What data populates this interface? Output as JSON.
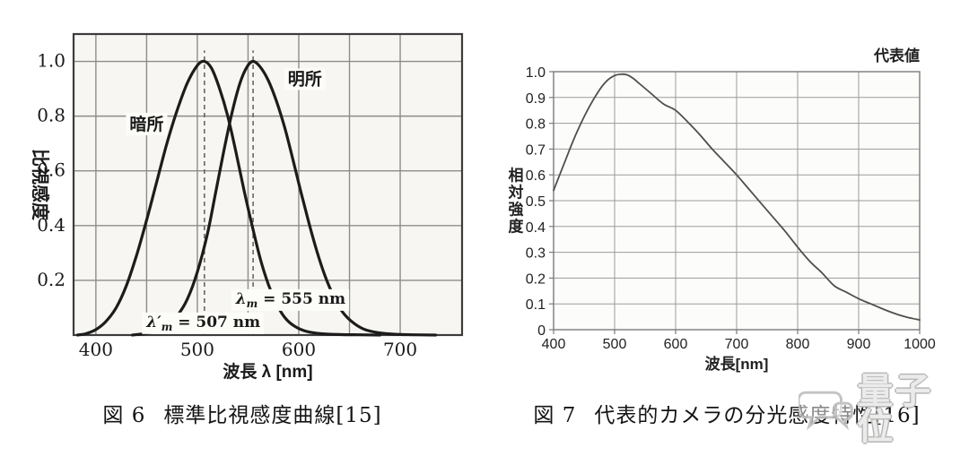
{
  "watermark": {
    "text": "量子位",
    "icon": "chat-bubble-icon",
    "color": "#bdbdbd"
  },
  "chart_data": [
    {
      "id": "fig6",
      "type": "line",
      "caption_label": "図 6",
      "caption_title": "標準比視感度曲線[15]",
      "xlabel": "波長 λ [nm]",
      "ylabel": "比視感度",
      "ylabel_mode": "rotated",
      "xlim": [
        378,
        761
      ],
      "ylim": [
        0,
        1.1
      ],
      "grid": true,
      "legend_label": "",
      "x_ticks": [
        {
          "v": 400,
          "label": "400"
        },
        {
          "v": 500,
          "label": "500"
        },
        {
          "v": 600,
          "label": "600"
        },
        {
          "v": 700,
          "label": "700"
        }
      ],
      "y_ticks": [
        {
          "v": 1.0,
          "label": "1.0"
        },
        {
          "v": 0.8,
          "label": "0.8"
        },
        {
          "v": 0.6,
          "label": "0.6"
        },
        {
          "v": 0.4,
          "label": "0.4"
        },
        {
          "v": 0.2,
          "label": "0.2"
        }
      ],
      "x_gridlines": [
        400,
        450,
        500,
        550,
        600,
        650,
        700
      ],
      "y_gridlines": [
        0.2,
        0.4,
        0.6,
        0.8,
        1.0
      ],
      "vlines": [
        {
          "x": 507,
          "from": 0,
          "to": 1.04,
          "style": "dashed"
        },
        {
          "x": 555,
          "from": 0,
          "to": 1.04,
          "style": "dashed"
        }
      ],
      "series": [
        {
          "id": "scotopic-curve",
          "name": "暗所",
          "peak_note": "λ′m = 507 nm",
          "points": [
            [
              382,
              0
            ],
            [
              390,
              0.005
            ],
            [
              400,
              0.02
            ],
            [
              410,
              0.05
            ],
            [
              420,
              0.1
            ],
            [
              430,
              0.18
            ],
            [
              440,
              0.29
            ],
            [
              450,
              0.42
            ],
            [
              460,
              0.56
            ],
            [
              470,
              0.7
            ],
            [
              480,
              0.82
            ],
            [
              490,
              0.92
            ],
            [
              500,
              0.985
            ],
            [
              507,
              1.0
            ],
            [
              514,
              0.975
            ],
            [
              522,
              0.9
            ],
            [
              530,
              0.8
            ],
            [
              538,
              0.67
            ],
            [
              546,
              0.53
            ],
            [
              554,
              0.4
            ],
            [
              562,
              0.28
            ],
            [
              570,
              0.185
            ],
            [
              578,
              0.115
            ],
            [
              586,
              0.065
            ],
            [
              596,
              0.032
            ],
            [
              608,
              0.013
            ],
            [
              622,
              0.005
            ],
            [
              640,
              0.002
            ],
            [
              660,
              0.001
            ],
            [
              680,
              0
            ]
          ]
        },
        {
          "id": "photopic-curve",
          "name": "明所",
          "peak_note": "λm = 555 nm",
          "points": [
            [
              436,
              0
            ],
            [
              448,
              0.005
            ],
            [
              460,
              0.015
            ],
            [
              470,
              0.035
            ],
            [
              480,
              0.07
            ],
            [
              490,
              0.13
            ],
            [
              500,
              0.23
            ],
            [
              510,
              0.37
            ],
            [
              518,
              0.52
            ],
            [
              526,
              0.67
            ],
            [
              534,
              0.81
            ],
            [
              542,
              0.92
            ],
            [
              549,
              0.98
            ],
            [
              555,
              1.0
            ],
            [
              562,
              0.98
            ],
            [
              570,
              0.93
            ],
            [
              578,
              0.855
            ],
            [
              586,
              0.76
            ],
            [
              594,
              0.645
            ],
            [
              602,
              0.525
            ],
            [
              610,
              0.41
            ],
            [
              618,
              0.305
            ],
            [
              626,
              0.215
            ],
            [
              634,
              0.145
            ],
            [
              642,
              0.09
            ],
            [
              652,
              0.05
            ],
            [
              664,
              0.022
            ],
            [
              678,
              0.009
            ],
            [
              695,
              0.003
            ],
            [
              715,
              0.001
            ],
            [
              735,
              0
            ]
          ]
        }
      ],
      "annotations": [
        {
          "id": "scotopic-label",
          "x": 450,
          "y": 0.75,
          "parts": [
            {
              "text": "暗所"
            }
          ],
          "bg": true,
          "bold": true,
          "size": 19,
          "font": "sans"
        },
        {
          "id": "photopic-label",
          "x": 606,
          "y": 0.915,
          "parts": [
            {
              "text": "明所"
            }
          ],
          "bg": true,
          "bold": true,
          "size": 19,
          "font": "sans"
        },
        {
          "id": "lambda-507-note",
          "x": 506,
          "y": 0.03,
          "parts": [
            {
              "text": "λ′",
              "italic": true
            },
            {
              "text": "m",
              "sub": true,
              "italic": true
            },
            {
              "text": " = 507 nm"
            }
          ],
          "bg": true,
          "bold": true,
          "size": 17,
          "font": "serif"
        },
        {
          "id": "lambda-555-note",
          "x": 592,
          "y": 0.115,
          "parts": [
            {
              "text": "λ",
              "italic": true
            },
            {
              "text": "m",
              "sub": true,
              "italic": true
            },
            {
              "text": " = 555 nm"
            }
          ],
          "bg": true,
          "bold": true,
          "size": 17,
          "font": "serif"
        }
      ],
      "style": {
        "plot_bg": "#f7f6f2",
        "grid_color": "#8c8c8c",
        "grid_width": 1.4,
        "border_color": "#3c3c3c",
        "border_width": 2.2,
        "curve_color": "#1c1c1c",
        "curve_width": 3.2,
        "dash_color": "#666666",
        "text_color": "#1a1a1a",
        "tick_size": 20,
        "tick_font": "serif",
        "label_size": 19,
        "tick_marks": false,
        "ylabel_dx": 44,
        "ylabel_size": 20
      }
    },
    {
      "id": "fig7",
      "type": "line",
      "caption_label": "図 7",
      "caption_title": "代表的カメラの分光感度特性[16]",
      "xlabel": "波長[nm]",
      "ylabel": "相対強度",
      "ylabel_mode": "stacked",
      "xlim": [
        400,
        1000
      ],
      "ylim": [
        0,
        1.0
      ],
      "grid": true,
      "legend_label": "代表値",
      "legend_position": "top-right",
      "x_ticks": [
        {
          "v": 400,
          "label": "400"
        },
        {
          "v": 500,
          "label": "500"
        },
        {
          "v": 600,
          "label": "600"
        },
        {
          "v": 700,
          "label": "700"
        },
        {
          "v": 800,
          "label": "800"
        },
        {
          "v": 900,
          "label": "900"
        },
        {
          "v": 1000,
          "label": "1000"
        }
      ],
      "y_ticks": [
        {
          "v": 1.0,
          "label": "1.0"
        },
        {
          "v": 0.9,
          "label": "0.9"
        },
        {
          "v": 0.8,
          "label": "0.8"
        },
        {
          "v": 0.7,
          "label": "0.7"
        },
        {
          "v": 0.6,
          "label": "0.6"
        },
        {
          "v": 0.5,
          "label": "0.5"
        },
        {
          "v": 0.4,
          "label": "0.4"
        },
        {
          "v": 0.3,
          "label": "0.3"
        },
        {
          "v": 0.2,
          "label": "0.2"
        },
        {
          "v": 0.1,
          "label": "0.1"
        },
        {
          "v": 0,
          "label": "0"
        }
      ],
      "x_gridlines": [
        400,
        500,
        600,
        700,
        800,
        900,
        1000
      ],
      "y_gridlines": [
        0,
        0.1,
        0.2,
        0.3,
        0.4,
        0.5,
        0.6,
        0.7,
        0.8,
        0.9,
        1.0
      ],
      "vlines": [],
      "series": [
        {
          "id": "camera-sensitivity-curve",
          "name": "代表値",
          "points": [
            [
              400,
              0.54
            ],
            [
              410,
              0.6
            ],
            [
              420,
              0.66
            ],
            [
              430,
              0.72
            ],
            [
              440,
              0.775
            ],
            [
              450,
              0.825
            ],
            [
              460,
              0.87
            ],
            [
              470,
              0.91
            ],
            [
              480,
              0.945
            ],
            [
              490,
              0.97
            ],
            [
              500,
              0.985
            ],
            [
              510,
              0.99
            ],
            [
              520,
              0.988
            ],
            [
              530,
              0.975
            ],
            [
              540,
              0.955
            ],
            [
              560,
              0.915
            ],
            [
              580,
              0.875
            ],
            [
              600,
              0.85
            ],
            [
              620,
              0.805
            ],
            [
              640,
              0.755
            ],
            [
              660,
              0.7
            ],
            [
              680,
              0.65
            ],
            [
              700,
              0.6
            ],
            [
              720,
              0.545
            ],
            [
              740,
              0.49
            ],
            [
              760,
              0.435
            ],
            [
              780,
              0.38
            ],
            [
              800,
              0.32
            ],
            [
              820,
              0.265
            ],
            [
              840,
              0.22
            ],
            [
              860,
              0.17
            ],
            [
              880,
              0.145
            ],
            [
              900,
              0.12
            ],
            [
              920,
              0.1
            ],
            [
              940,
              0.08
            ],
            [
              960,
              0.062
            ],
            [
              980,
              0.048
            ],
            [
              1000,
              0.038
            ]
          ]
        }
      ],
      "annotations": [],
      "style": {
        "plot_bg": "#fcfcfa",
        "grid_color": "#9b9b9b",
        "grid_width": 1,
        "border_color": "#7a7a7a",
        "border_width": 1.4,
        "curve_color": "#4f4f4f",
        "curve_width": 1.8,
        "dash_color": "#888888",
        "text_color": "#222222",
        "tick_size": 16,
        "tick_font": "sans",
        "label_size": 17,
        "tick_marks": true,
        "ylabel_dx": 42,
        "ylabel_size": 17,
        "ylabel_spacing": 19,
        "legend_size": 17
      }
    }
  ]
}
